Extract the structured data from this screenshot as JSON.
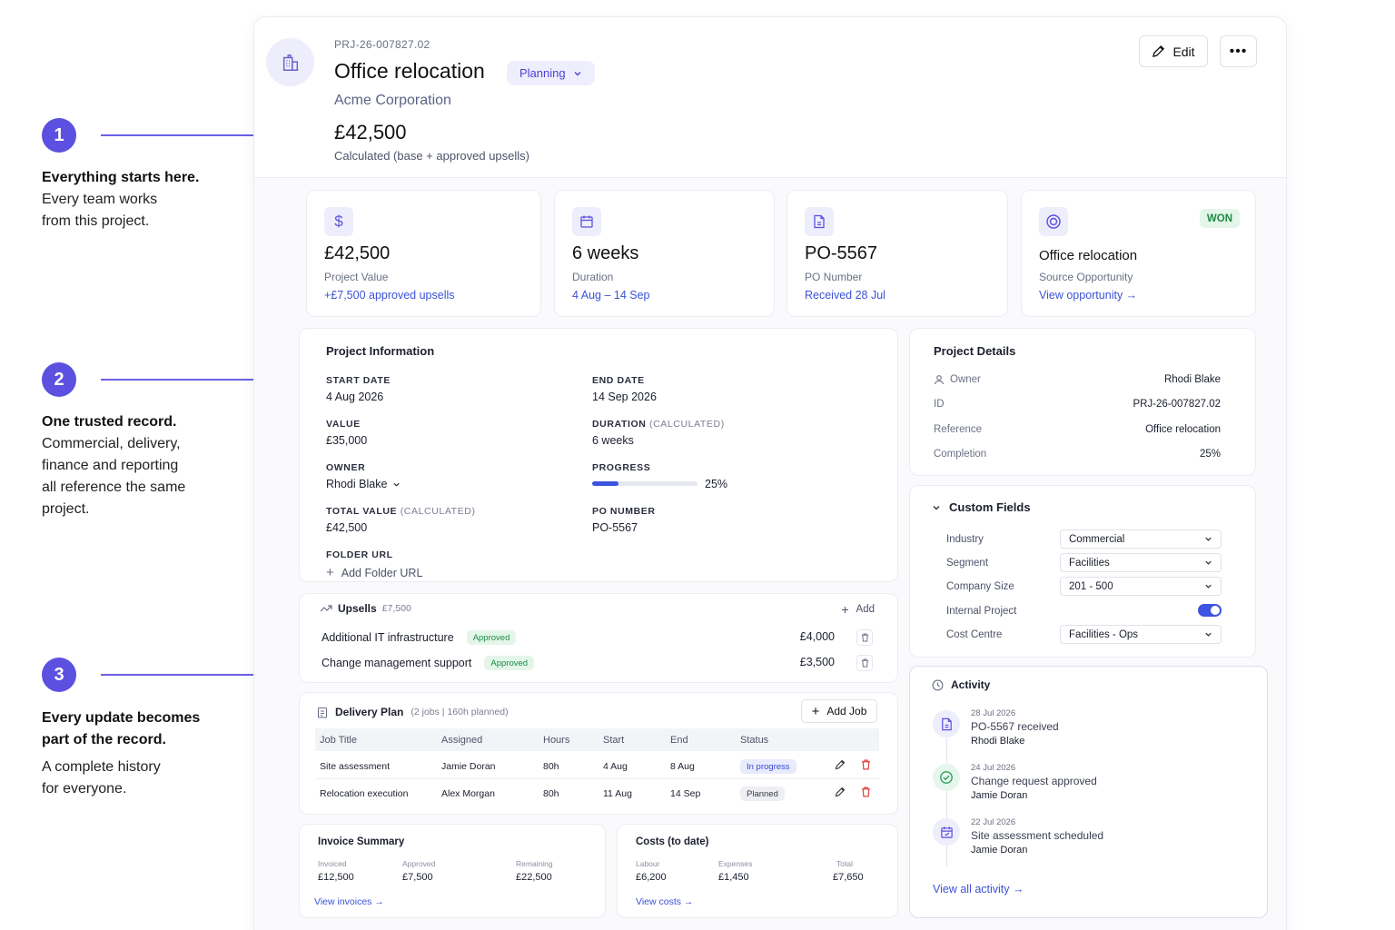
{
  "annotations": [
    {
      "num": "1",
      "heading": "Everything starts here.",
      "lines": [
        "Every team works",
        "from this project."
      ]
    },
    {
      "num": "2",
      "heading": "One trusted record.",
      "lines": [
        "Commercial, delivery,",
        "finance and reporting",
        "all reference the same",
        "project."
      ]
    },
    {
      "num": "3",
      "heading_lines": [
        "Every update becomes",
        "part of the record."
      ],
      "lines": [
        "A complete history",
        "for everyone."
      ]
    }
  ],
  "header": {
    "code": "PRJ-26-007827.02",
    "title": "Office relocation",
    "status": "Planning",
    "client": "Acme Corporation",
    "value": "£42,500",
    "value_note": "Calculated (base + approved upsells)",
    "edit_label": "Edit",
    "more_label": "•••"
  },
  "stats": [
    {
      "icon": "dollar-icon",
      "value": "£42,500",
      "label": "Project Value",
      "link": "+£7,500 approved upsells"
    },
    {
      "icon": "calendar-icon",
      "value": "6 weeks",
      "label": "Duration",
      "link": "4 Aug – 14 Sep"
    },
    {
      "icon": "document-icon",
      "value": "PO-5567",
      "label": "PO Number",
      "link": "Received 28 Jul"
    },
    {
      "icon": "target-icon",
      "value": "Office relocation",
      "label": "Source Opportunity",
      "link": "View opportunity",
      "badge": "WON"
    }
  ],
  "project_info": {
    "title": "Project Information",
    "start_label": "START DATE",
    "start": "4 Aug 2026",
    "end_label": "END DATE",
    "end": "14 Sep 2026",
    "value_label": "VALUE",
    "value": "£35,000",
    "duration_label": "DURATION",
    "duration_calc": "(CALCULATED)",
    "duration": "6 weeks",
    "owner_label": "OWNER",
    "owner": "Rhodi Blake",
    "progress_label": "PROGRESS",
    "progress": 25,
    "progress_text": "25%",
    "total_label": "TOTAL VALUE",
    "total_calc": "(CALCULATED)",
    "total": "£42,500",
    "po_label": "PO NUMBER",
    "po": "PO-5567",
    "folder_label": "FOLDER URL",
    "folder_add": "Add Folder URL"
  },
  "project_details": {
    "title": "Project Details",
    "rows": [
      {
        "label": "Owner",
        "value": "Rhodi Blake"
      },
      {
        "label": "ID",
        "value": "PRJ-26-007827.02"
      },
      {
        "label": "Reference",
        "value": "Office relocation"
      },
      {
        "label": "Completion",
        "value": "25%"
      }
    ]
  },
  "custom_fields": {
    "title": "Custom Fields",
    "industry_label": "Industry",
    "industry": "Commercial",
    "segment_label": "Segment",
    "segment": "Facilities",
    "size_label": "Company Size",
    "size": "201 - 500",
    "internal_label": "Internal Project",
    "internal": true,
    "cost_label": "Cost Centre",
    "cost": "Facilities - Ops"
  },
  "upsells": {
    "title": "Upsells",
    "total": "£7,500",
    "add_label": "Add",
    "items": [
      {
        "name": "Additional IT infrastructure",
        "status": "Approved",
        "amount": "£4,000"
      },
      {
        "name": "Change management support",
        "status": "Approved",
        "amount": "£3,500"
      }
    ]
  },
  "delivery": {
    "title": "Delivery Plan",
    "summary": "(2 jobs | 160h planned)",
    "add_label": "Add Job",
    "columns": [
      "Job Title",
      "Assigned",
      "Hours",
      "Start",
      "End",
      "Status"
    ],
    "rows": [
      {
        "title": "Site assessment",
        "assigned": "Jamie Doran",
        "hours": "80h",
        "start": "4 Aug",
        "end": "8 Aug",
        "status": "In progress"
      },
      {
        "title": "Relocation execution",
        "assigned": "Alex Morgan",
        "hours": "80h",
        "start": "11 Aug",
        "end": "14 Sep",
        "status": "Planned"
      }
    ]
  },
  "invoice": {
    "title": "Invoice Summary",
    "invoiced_label": "Invoiced",
    "invoiced": "£12,500",
    "approved_label": "Approved",
    "approved": "£7,500",
    "remaining_label": "Remaining",
    "remaining": "£22,500",
    "link": "View invoices"
  },
  "costs": {
    "title": "Costs (to date)",
    "labour_label": "Labour",
    "labour": "£6,200",
    "expenses_label": "Expenses",
    "expenses": "£1,450",
    "total_label": "Total",
    "total": "£7,650",
    "link": "View costs"
  },
  "activity": {
    "title": "Activity",
    "items": [
      {
        "icon": "document-icon",
        "date": "28 Jul 2026",
        "title": "PO-5567 received",
        "user": "Rhodi Blake"
      },
      {
        "icon": "check-circle-icon",
        "date": "24 Jul 2026",
        "title": "Change request approved",
        "user": "Jamie Doran"
      },
      {
        "icon": "calendar-icon",
        "date": "22 Jul 2026",
        "title": "Site assessment scheduled",
        "user": "Jamie Doran"
      }
    ],
    "link": "View all activity"
  },
  "colors": {
    "accent": "#5b50e0",
    "link": "#3b52d6",
    "success": "#1e8a44",
    "danger": "#e0413a"
  }
}
